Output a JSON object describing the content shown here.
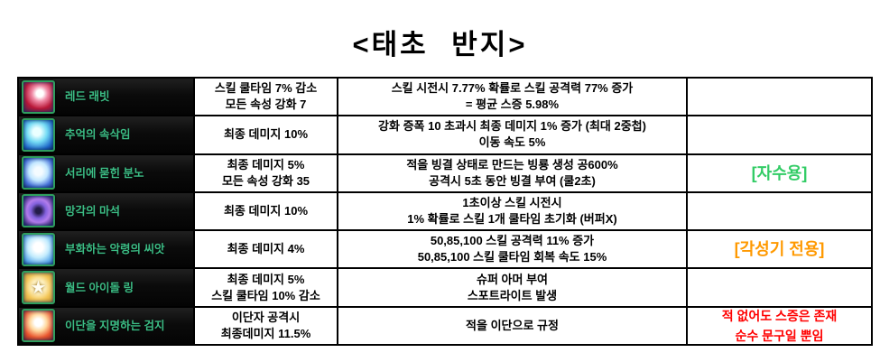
{
  "title": "<태초 반지>",
  "colors": {
    "note_green": "#33cc66",
    "note_orange": "#ff9900",
    "note_red": "#ff0000",
    "item_name_green": "#3cbd85",
    "table_border": "#000000",
    "item_cell_background": "#0b0b0b"
  },
  "table": {
    "rows": [
      {
        "name": "레드 래빗",
        "icon": "red-rabbit-icon",
        "effect_lines": [
          "스킬 쿨타임 7% 감소",
          "모든 속성 강화 7"
        ],
        "detail_lines": [
          "스킬 시전시 7.77% 확률로 스킬 공격력 77% 증가",
          "= 평균 스증 5.98%"
        ],
        "note_lines": [],
        "note_tone": ""
      },
      {
        "name": "추억의 속삭임",
        "icon": "blue-orb-icon",
        "effect_lines": [
          "최종 데미지 10%"
        ],
        "detail_lines": [
          "강화 증폭 10 초과시 최종 데미지 1% 증가 (최대 2중첩)",
          "이동 속도 5%"
        ],
        "note_lines": [],
        "note_tone": ""
      },
      {
        "name": "서리에 묻힌 분노",
        "icon": "frost-rage-icon",
        "effect_lines": [
          "최종 데미지 5%",
          "모든 속성 강화 35"
        ],
        "detail_lines": [
          "적을 빙결 상태로 만드는 빙룡 생성 공600%",
          "공격시 5초 동안 빙결 부여 (쿨2초)"
        ],
        "note_lines": [
          "[자수용]"
        ],
        "note_tone": "green"
      },
      {
        "name": "망각의 마석",
        "icon": "oblivion-stone-icon",
        "effect_lines": [
          "최종 데미지 10%"
        ],
        "detail_lines": [
          "1초이상 스킬 시전시",
          "1% 확률로 스킬 1개 쿨타임 초기화 (버퍼X)"
        ],
        "note_lines": [],
        "note_tone": ""
      },
      {
        "name": "부화하는 악령의 씨앗",
        "icon": "hatching-seed-icon",
        "effect_lines": [
          "최종 데미지 4%"
        ],
        "detail_lines": [
          "50,85,100 스킬 공격력 11% 증가",
          "50,85,100 스킬 쿨타임 회복 속도 15%"
        ],
        "note_lines": [
          "[각성기 전용]"
        ],
        "note_tone": "orange"
      },
      {
        "name": "월드 아이돌 링",
        "icon": "idol-star-icon",
        "effect_lines": [
          "최종 데미지 5%",
          "스킬 쿨타임 10% 감소"
        ],
        "detail_lines": [
          "슈퍼 아머 부여",
          "스포트라이트 발생"
        ],
        "note_lines": [],
        "note_tone": ""
      },
      {
        "name": "이단을 지명하는 검지",
        "icon": "heresy-finger-icon",
        "effect_lines": [
          "이단자 공격시",
          "최종데미지 11.5%"
        ],
        "detail_lines": [
          "적을 이단으로 규정"
        ],
        "note_lines": [
          "적 없어도 스증은 존재",
          "순수 문구일 뿐임"
        ],
        "note_tone": "red"
      }
    ]
  }
}
